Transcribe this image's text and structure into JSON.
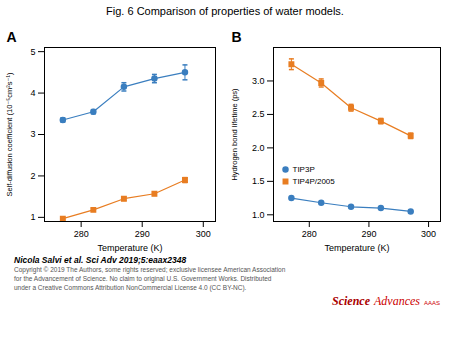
{
  "chart_data": [
    {
      "type": "line",
      "title": "Fig. 6 Comparison of properties of water models.",
      "annotations": [
        {
          "text": "A"
        }
      ],
      "xlabel": "Temperature (K)",
      "ylabel": "Self-diffusion coefficient (10⁻⁵cm²s⁻¹)",
      "x": [
        277,
        282,
        287,
        292,
        297
      ],
      "series": [
        {
          "name": "TIP3P",
          "color": "#3a7ebf",
          "marker": "circle",
          "values": [
            3.35,
            3.55,
            4.15,
            4.35,
            4.5
          ],
          "errors": [
            0.05,
            0.05,
            0.1,
            0.1,
            0.18
          ]
        },
        {
          "name": "TIP4P/2005",
          "color": "#e87d22",
          "marker": "square",
          "values": [
            0.97,
            1.18,
            1.45,
            1.57,
            1.9
          ],
          "errors": [
            0.03,
            0.03,
            0.04,
            0.04,
            0.06
          ]
        }
      ],
      "xlim": [
        274,
        302
      ],
      "xticks": [
        280,
        290,
        300
      ],
      "ylim": [
        0.9,
        5.1
      ],
      "yticks": [
        1,
        2,
        3,
        4,
        5
      ]
    },
    {
      "type": "line",
      "annotations": [
        {
          "text": "B"
        },
        {
          "text": "Nicola Salvi et al. Sci Adv 2019;5:eaax2348"
        },
        {
          "text": "Copyright © 2019 The Authors, some rights reserved; exclusive licensee American Association",
          "color": "#555555"
        },
        {
          "text": "for the Advancement of Science. No claim to original U.S. Government Works. Distributed",
          "color": "#555555"
        },
        {
          "text": "under a Creative Commons Attribution NonCommercial License 4.0 (CC BY-NC).",
          "color": "#555555"
        },
        {
          "text": "Science",
          "color": "#aa0000"
        },
        {
          "text": "Advances",
          "color": "#cc0000"
        },
        {
          "text": "AAAS",
          "color": "#cc0000"
        }
      ],
      "xlabel": "Temperature (K)",
      "ylabel": "Hydrogen bond lifetime (ps)",
      "x": [
        277,
        282,
        287,
        292,
        297
      ],
      "series": [
        {
          "name": "TIP3P",
          "color": "#3a7ebf",
          "marker": "circle",
          "values": [
            1.25,
            1.18,
            1.12,
            1.1,
            1.05
          ],
          "errors": [
            0.01,
            0.01,
            0.01,
            0.01,
            0.01
          ]
        },
        {
          "name": "TIP4P/2005",
          "color": "#e87d22",
          "marker": "square",
          "values": [
            3.25,
            2.97,
            2.6,
            2.4,
            2.18
          ],
          "errors": [
            0.08,
            0.06,
            0.05,
            0.04,
            0.04
          ]
        }
      ],
      "legend": "lower left",
      "xlim": [
        274,
        302
      ],
      "xticks": [
        280,
        290,
        300
      ],
      "ylim": [
        0.9,
        3.5
      ],
      "yticks": [
        {
          "value": 1.0,
          "label": "1.0"
        },
        1.5,
        {
          "value": 2.0,
          "label": "2.0"
        },
        2.5,
        {
          "value": 3.0,
          "label": "3.0"
        }
      ]
    }
  ]
}
